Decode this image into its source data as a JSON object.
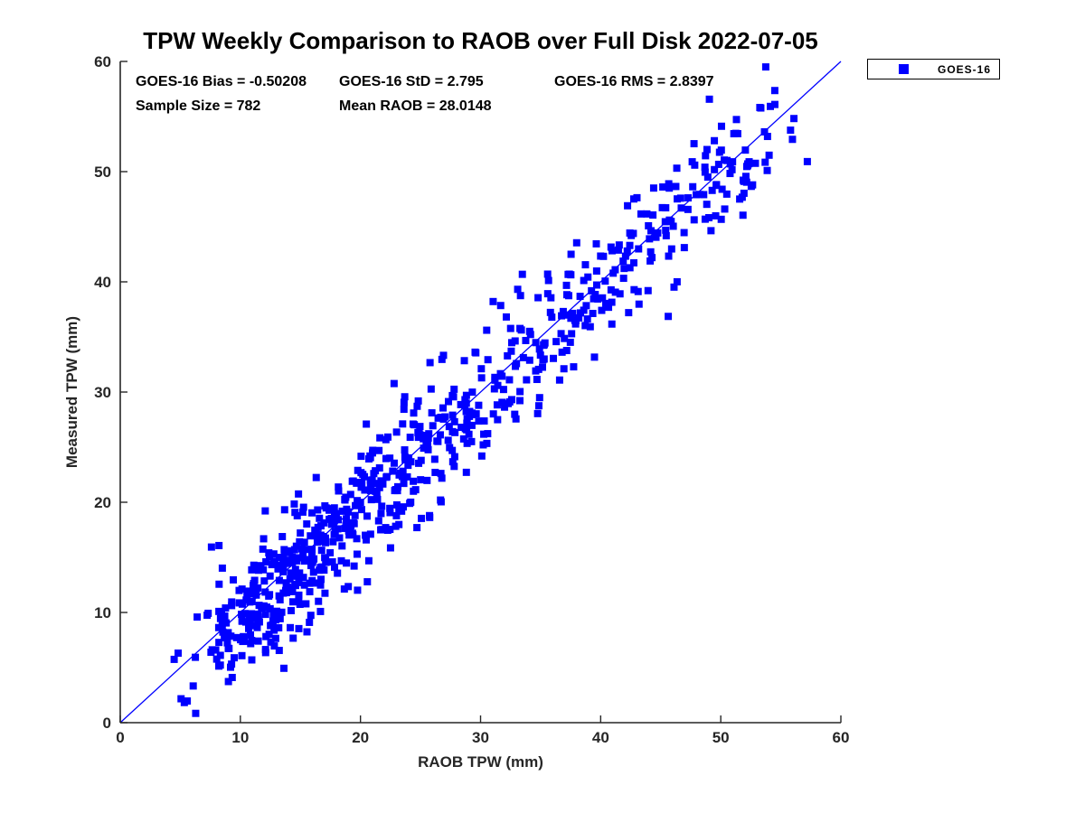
{
  "title": "TPW Weekly Comparison to RAOB over Full Disk 2022-07-05",
  "annotations": {
    "bias": "GOES-16 Bias = -0.50208",
    "std": "GOES-16 StD = 2.795",
    "rms": "GOES-16 RMS = 2.8397",
    "sample_size": "Sample Size = 782",
    "mean_raob": "Mean RAOB = 28.0148"
  },
  "legend": {
    "position": "top-right-outside",
    "entries": [
      {
        "label": "GOES-16",
        "marker": "square",
        "marker_color": "#0000ff"
      }
    ]
  },
  "colors": {
    "marker": "#0000ff",
    "identity_line": "#0000ff",
    "axis": "#262626",
    "axis_text": "#262626",
    "annotation_text": "#000000",
    "background": "#ffffff"
  },
  "chart_data": {
    "type": "scatter",
    "title": "TPW Weekly Comparison to RAOB over Full Disk 2022-07-05",
    "xlabel": "RAOB TPW (mm)",
    "ylabel": "Measured TPW (mm)",
    "xlim": [
      0,
      60
    ],
    "ylim": [
      0,
      60
    ],
    "xticks": [
      0,
      10,
      20,
      30,
      40,
      50,
      60
    ],
    "yticks": [
      0,
      10,
      20,
      30,
      40,
      50,
      60
    ],
    "grid": false,
    "tick_direction": "in",
    "identity_line": {
      "from": [
        0,
        0
      ],
      "to": [
        60,
        60
      ],
      "color": "#0000ff",
      "width": 1.3
    },
    "series": [
      {
        "name": "GOES-16",
        "marker": "square",
        "marker_color": "#0000ff",
        "marker_size_px": 8,
        "n_points": 782,
        "stats": {
          "bias": -0.50208,
          "std": 2.795,
          "rms": 2.8397,
          "sample_size": 782,
          "mean_raob": 28.0148
        },
        "relation": "measured = raob + bias + gaussian_noise(std)",
        "x_range_observed": [
          4.3,
          57.0
        ],
        "y_range_observed": [
          5.5,
          58.3
        ],
        "x_band_edges": [
          4,
          6,
          8,
          10,
          12,
          14,
          16,
          18,
          20,
          22,
          24,
          26,
          28,
          30,
          32,
          34,
          36,
          38,
          40,
          42,
          44,
          46,
          48,
          50,
          52,
          54,
          56,
          57.5
        ],
        "x_band_counts": [
          5,
          10,
          35,
          55,
          62,
          62,
          55,
          45,
          45,
          41,
          37,
          32,
          28,
          24,
          24,
          26,
          26,
          22,
          20,
          20,
          22,
          18,
          20,
          22,
          18,
          6,
          2
        ],
        "prng_seed": 20220705,
        "y_clamp": [
          0.4,
          59.5
        ]
      }
    ]
  }
}
